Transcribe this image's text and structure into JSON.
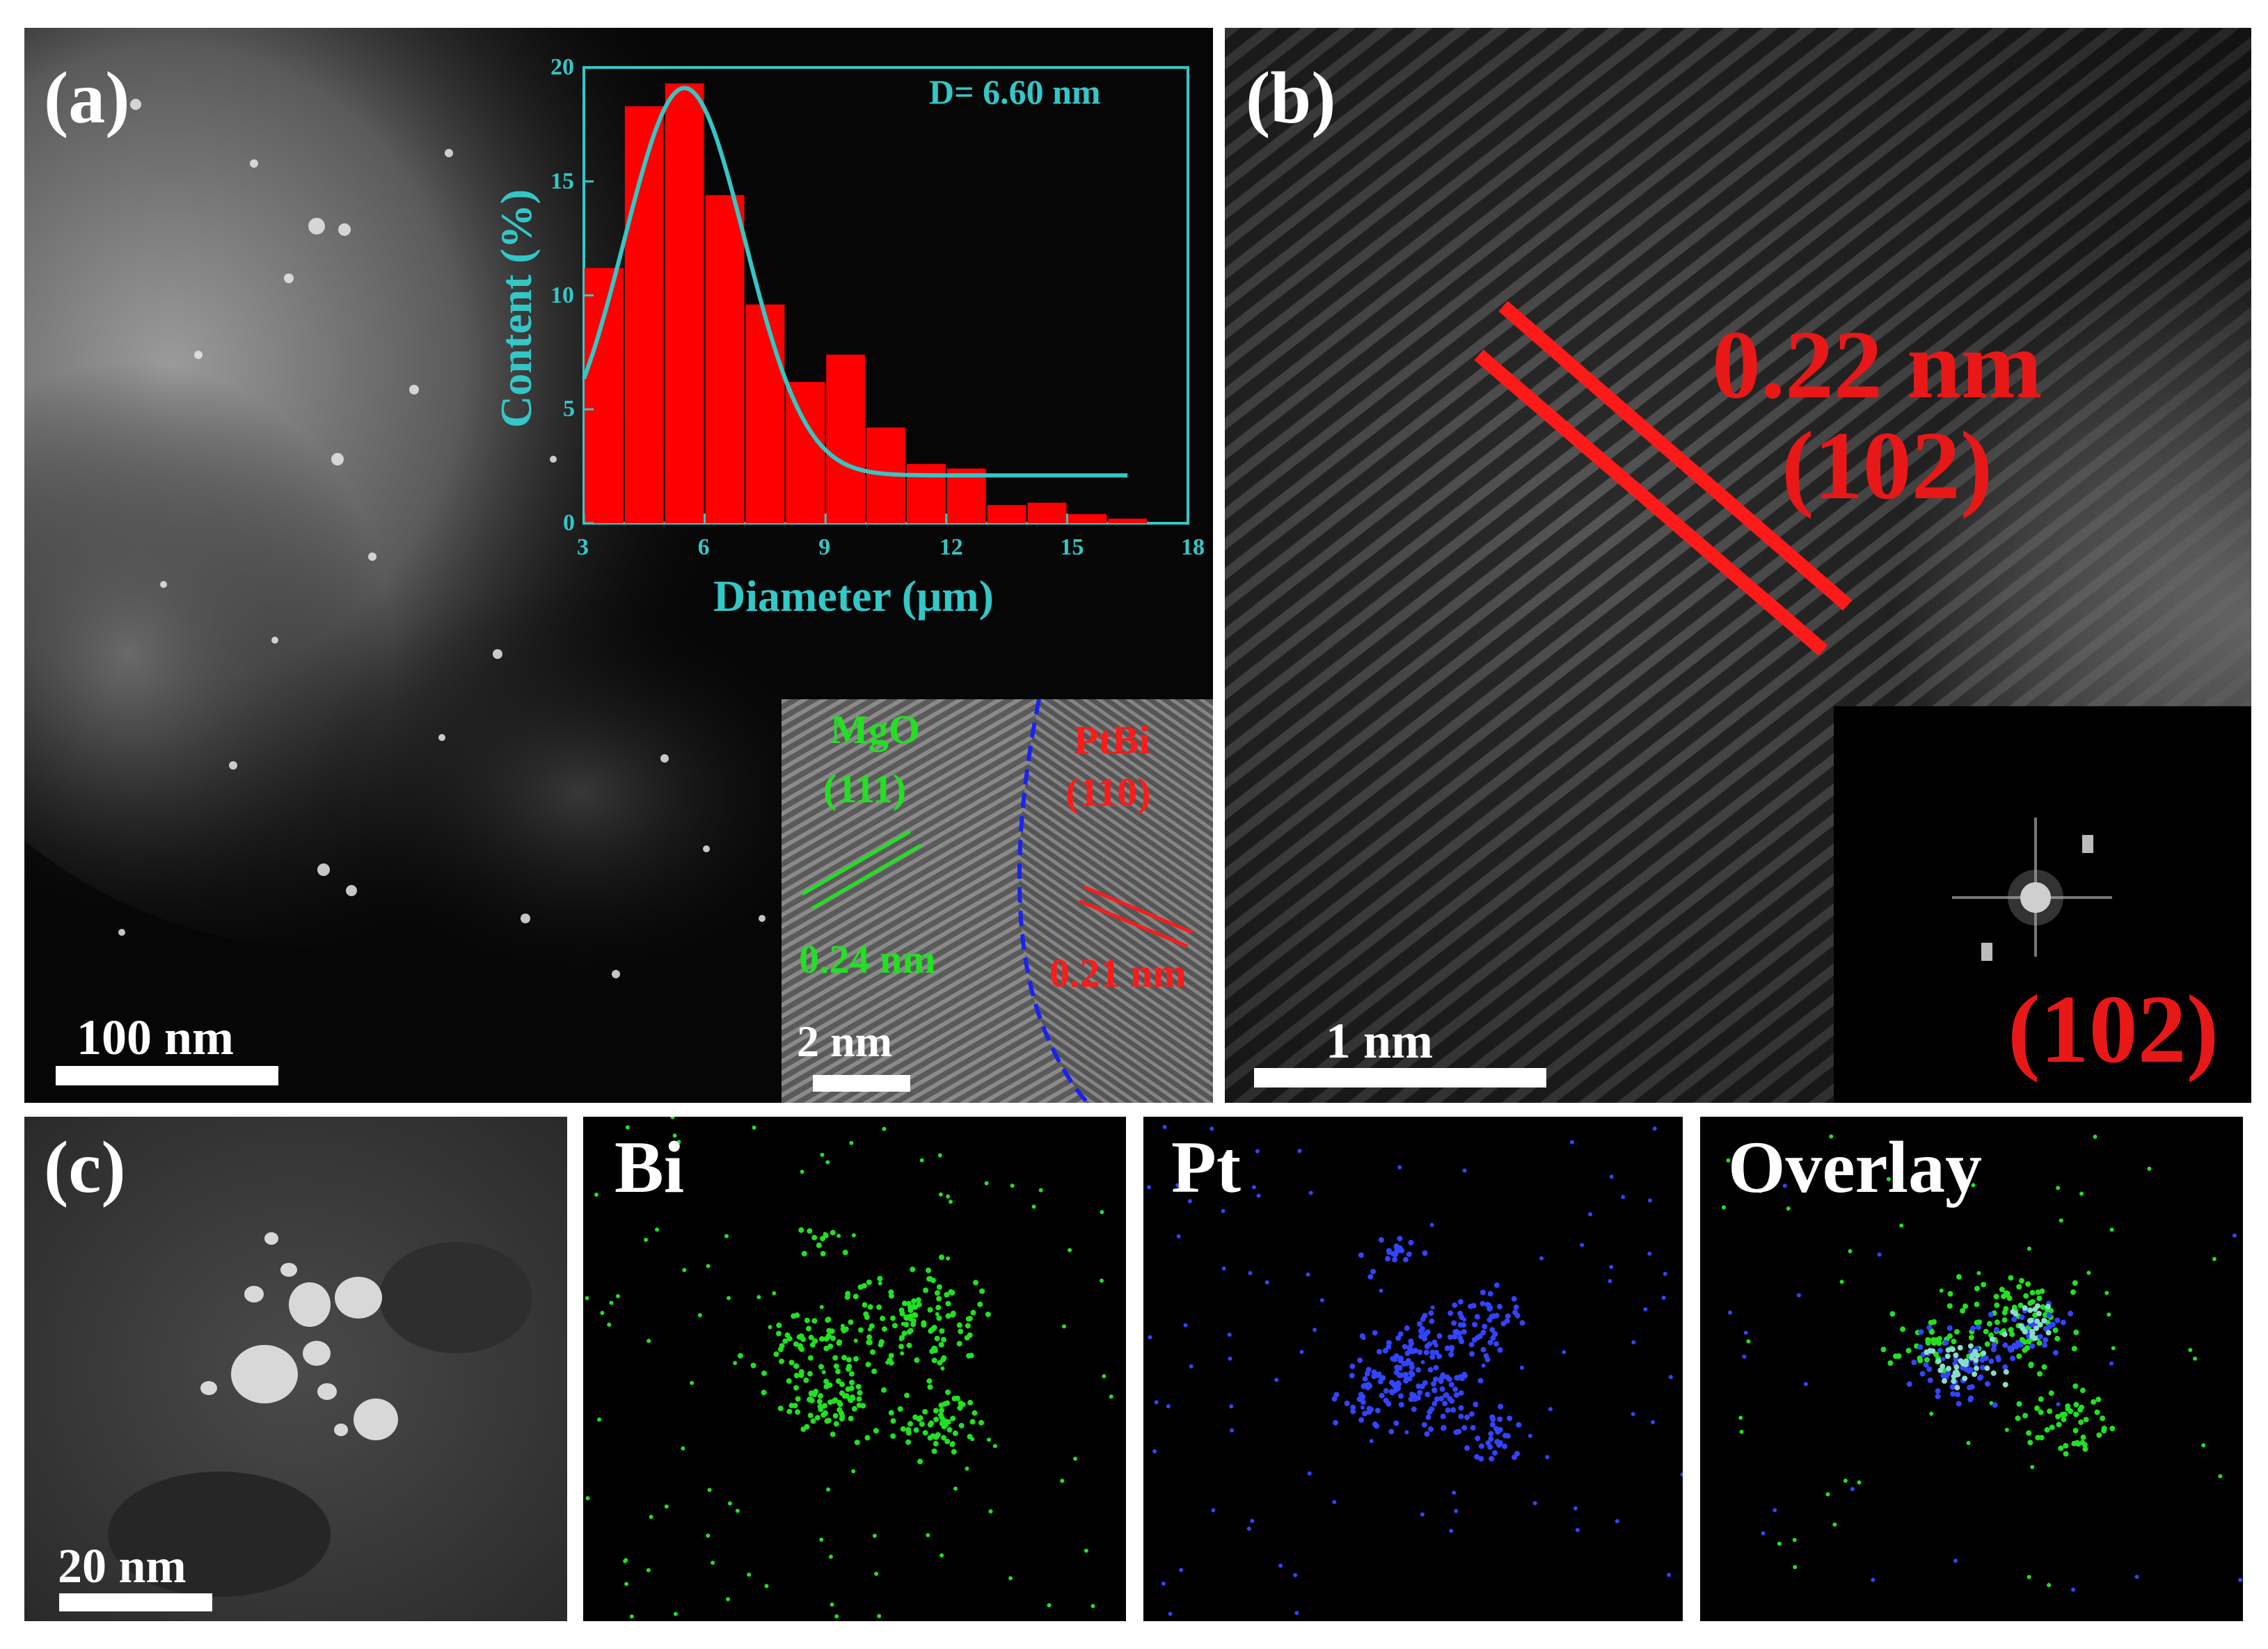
{
  "panel_a": {
    "label": "(a)",
    "scale_bar": "100 nm",
    "inset_hrtem": {
      "mgo_label": "MgO",
      "mgo_plane": "(111)",
      "mgo_spacing": "0.24 nm",
      "ptbi_label": "PtBi",
      "ptbi_plane": "(110)",
      "ptbi_spacing": "0.21 nm",
      "scale_bar": "2 nm"
    }
  },
  "panel_b": {
    "label": "(b)",
    "spacing": "0.22 nm",
    "plane": "(102)",
    "fft_label": "(102)",
    "scale_bar": "1 nm"
  },
  "panel_c": {
    "label": "(c)",
    "scale_bar": "20 nm",
    "maps": [
      {
        "label": "Bi",
        "color": "#22e022"
      },
      {
        "label": "Pt",
        "color": "#3344ff"
      },
      {
        "label": "Overlay",
        "color": "#88ddcc"
      }
    ]
  },
  "chart_data": {
    "type": "bar",
    "annotation": "D= 6.60 nm",
    "xlabel": "Diameter (μm)",
    "ylabel": "Content (%)",
    "xlim": [
      3,
      18
    ],
    "ylim": [
      0,
      20
    ],
    "xticks": [
      "3",
      "6",
      "9",
      "12",
      "15",
      "18"
    ],
    "yticks": [
      "0",
      "5",
      "10",
      "15",
      "20"
    ],
    "bin_width": 1,
    "bins": [
      3.5,
      4.5,
      5.5,
      6.5,
      7.5,
      8.5,
      9.5,
      10.5,
      11.5,
      12.5,
      13.5,
      14.5,
      15.5,
      16.5
    ],
    "values": [
      11.2,
      18.3,
      19.3,
      14.4,
      9.6,
      6.2,
      7.4,
      4.2,
      2.6,
      2.4,
      0.8,
      0.9,
      0.4,
      0.2
    ],
    "fit": {
      "type": "gaussian",
      "center": 5.5,
      "sigma": 1.5,
      "amplitude": 17,
      "baseline": 2.1,
      "x_range": [
        3,
        16.5
      ]
    },
    "bar_color": "#ff0000",
    "fit_color": "#33c7c7",
    "grid": false
  }
}
